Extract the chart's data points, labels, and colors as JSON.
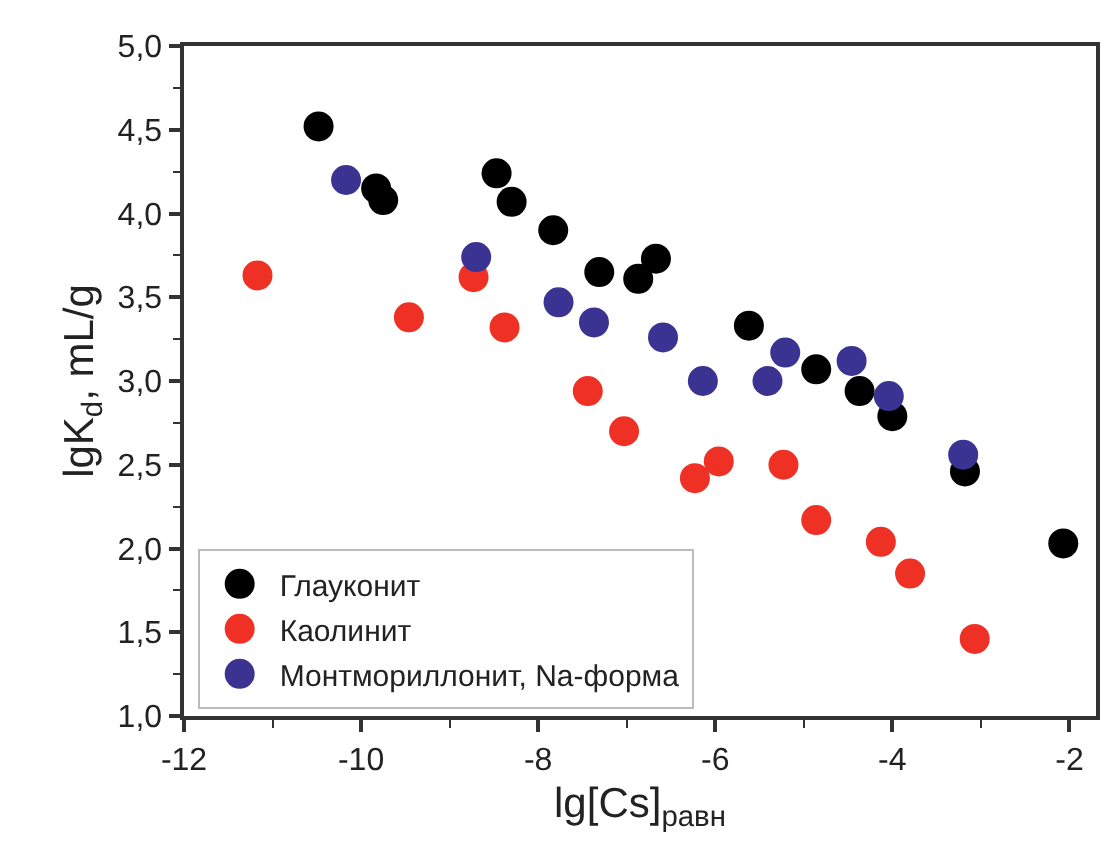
{
  "chart_data": {
    "type": "scatter",
    "xlabel": "lg[Cs]$_{равн}$",
    "ylabel": "lgK$_{d}$, mL/g",
    "xlim": [
      -12,
      -1.7
    ],
    "xticks": [
      -12,
      -10,
      -8,
      -6,
      -4,
      -2
    ],
    "ylim": [
      1.0,
      5.0
    ],
    "yticks": [
      {
        "value": 1.0,
        "label": "1,0"
      },
      {
        "value": 1.5,
        "label": "1,5"
      },
      {
        "value": 2.0,
        "label": "2,0"
      },
      {
        "value": 2.5,
        "label": "2,5"
      },
      {
        "value": 3.0,
        "label": "3,0"
      },
      {
        "value": 3.5,
        "label": "3,5"
      },
      {
        "value": 4.0,
        "label": "4,0"
      },
      {
        "value": 4.5,
        "label": "4,5"
      },
      {
        "value": 5.0,
        "label": "5,0"
      }
    ],
    "legend": "bottom left",
    "marker": "circle",
    "series": [
      {
        "name": "Глауконит",
        "color": "#000000",
        "x": [
          -10.48,
          -9.83,
          -9.75,
          -8.47,
          -8.3,
          -7.83,
          -7.31,
          -6.87,
          -6.67,
          -5.62,
          -4.86,
          -4.37,
          -4.0,
          -3.18,
          -2.07
        ],
        "values": [
          4.52,
          4.15,
          4.08,
          4.24,
          4.07,
          3.9,
          3.65,
          3.61,
          3.73,
          3.33,
          3.07,
          2.94,
          2.79,
          2.46,
          2.03
        ]
      },
      {
        "name": "Каолинит",
        "color": "#ee3124",
        "x": [
          -11.17,
          -9.46,
          -8.73,
          -8.38,
          -7.44,
          -7.03,
          -6.23,
          -5.96,
          -5.23,
          -4.86,
          -4.13,
          -3.8,
          -3.07
        ],
        "values": [
          3.63,
          3.38,
          3.62,
          3.32,
          2.94,
          2.7,
          2.42,
          2.52,
          2.5,
          2.17,
          2.04,
          1.85,
          1.46
        ]
      },
      {
        "name": "Монтмориллонит, Na-форма",
        "color": "#3a3392",
        "x": [
          -10.17,
          -8.7,
          -7.77,
          -7.37,
          -6.59,
          -6.14,
          -5.41,
          -5.21,
          -4.46,
          -4.04,
          -3.2
        ],
        "values": [
          4.2,
          3.74,
          3.47,
          3.35,
          3.26,
          3.0,
          3.0,
          3.17,
          3.12,
          2.91,
          2.56
        ]
      }
    ]
  }
}
